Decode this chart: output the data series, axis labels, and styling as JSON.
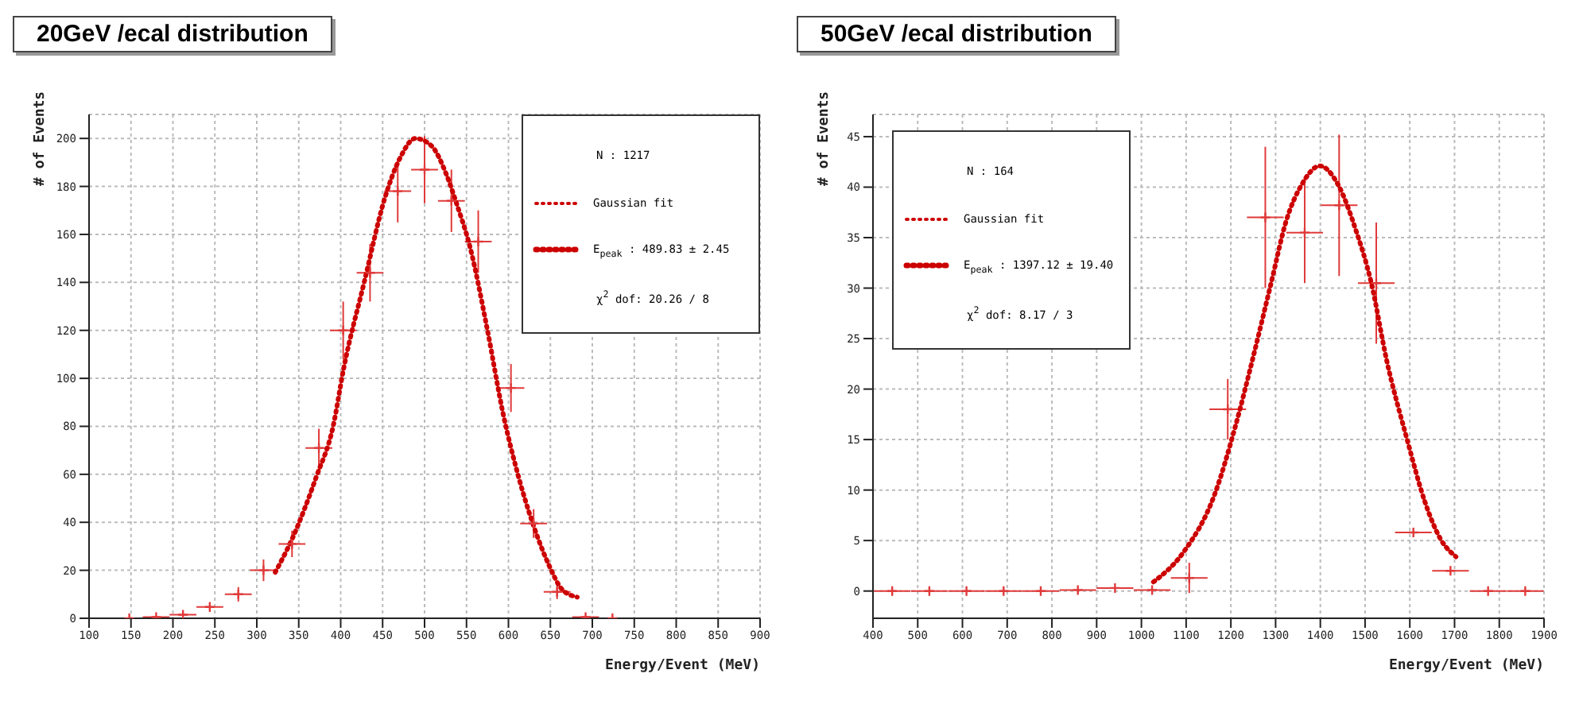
{
  "chart_data": [
    {
      "type": "scatter",
      "title": "20GeV /ecal distribution",
      "xlabel": "Energy/Event (MeV)",
      "ylabel": "# of Events",
      "xlim": [
        100,
        900
      ],
      "xticks": [
        100,
        150,
        200,
        250,
        300,
        350,
        400,
        450,
        500,
        550,
        600,
        650,
        700,
        750,
        800,
        850,
        900
      ],
      "ylim": [
        0,
        210
      ],
      "yticks": [
        0,
        20,
        40,
        60,
        80,
        100,
        120,
        140,
        160,
        180,
        200
      ],
      "grid": true,
      "legend": "top right",
      "annotations": [
        "N   :   1217",
        "E$_{peak}$ : 489.83 ± 2.45",
        "χ$^{2}$ dof: 20.26 /  8"
      ],
      "series": [
        {
          "type": "scatter",
          "marker": "cross",
          "color": "#e03a3a",
          "x": [
            148,
            180,
            212,
            244,
            278,
            308,
            342,
            374,
            403,
            435,
            468,
            500,
            532,
            564,
            603,
            630,
            658,
            692,
            724
          ],
          "values": [
            0,
            0.5,
            1.5,
            4.7,
            10,
            20,
            31,
            71,
            120,
            144,
            178,
            187,
            174,
            157,
            96,
            39.5,
            11,
            0.5,
            0
          ],
          "errors": [
            null,
            null,
            null,
            2,
            3,
            4.5,
            5.5,
            8,
            12,
            12,
            13,
            14,
            13,
            13,
            10,
            6,
            3,
            null,
            null
          ],
          "xerrors": [
            16,
            16,
            16,
            16,
            16,
            16,
            16,
            16,
            16,
            16,
            16,
            16,
            16,
            16,
            16,
            16,
            16,
            16,
            16
          ]
        },
        {
          "type": "line",
          "name": "Gaussian fit",
          "marker": "none",
          "color": "#cc0000",
          "line_style": "dotted",
          "x": [
            322,
            342,
            371,
            391,
            403.5,
            428,
            452.5,
            471,
            489,
            508,
            526,
            538,
            554,
            575,
            593.5,
            612,
            630,
            649,
            664,
            682
          ],
          "values": [
            19.2,
            33,
            59,
            80,
            104,
            140,
            175,
            192,
            200,
            197,
            185,
            173,
            155,
            120,
            85.5,
            59,
            38.5,
            21.6,
            12,
            8.8
          ]
        }
      ]
    },
    {
      "type": "scatter",
      "title": "50GeV /ecal distribution",
      "xlabel": "Energy/Event (MeV)",
      "ylabel": "# of Events",
      "xlim": [
        400,
        1900
      ],
      "xticks": [
        400,
        500,
        600,
        700,
        800,
        900,
        1000,
        1100,
        1200,
        1300,
        1400,
        1500,
        1600,
        1700,
        1800,
        1900
      ],
      "ylim": [
        -2.7,
        47.2
      ],
      "yticks": [
        0,
        5,
        10,
        15,
        20,
        25,
        30,
        35,
        40,
        45
      ],
      "grid": true,
      "legend": "top left",
      "annotations": [
        "N   :   164",
        "E$_{peak}$ : 1397.12 ± 19.40",
        "χ$^{2}$ dof: 8.17 /  3"
      ],
      "series": [
        {
          "type": "scatter",
          "marker": "cross",
          "color": "#e03a3a",
          "x": [
            443,
            526,
            609,
            692,
            775,
            858,
            941,
            1024,
            1107,
            1193,
            1277,
            1365,
            1442,
            1525,
            1608,
            1691,
            1775,
            1858
          ],
          "values": [
            0,
            0,
            0,
            0,
            0,
            0.1,
            0.3,
            0.1,
            1.3,
            18,
            37,
            35.5,
            38.2,
            30.5,
            5.8,
            2,
            0,
            0
          ],
          "errors": [
            null,
            null,
            null,
            null,
            null,
            null,
            null,
            null,
            1.5,
            3,
            7,
            5,
            7,
            6,
            null,
            null,
            null,
            null
          ],
          "xerrors": [
            41,
            41,
            41,
            41,
            41,
            41,
            41,
            41,
            41,
            41,
            41,
            41,
            41,
            41,
            41,
            41,
            41,
            41
          ]
        },
        {
          "type": "line",
          "name": "Gaussian fit",
          "marker": "none",
          "color": "#cc0000",
          "line_style": "dotted",
          "x": [
            1027,
            1095,
            1164,
            1210,
            1250,
            1290,
            1324,
            1359,
            1399,
            1439,
            1479,
            1514,
            1548,
            1594,
            1634,
            1668,
            1703
          ],
          "values": [
            0.9,
            3.9,
            9.6,
            16.3,
            23.2,
            30.5,
            36.7,
            40.3,
            42.1,
            40.3,
            35.8,
            30.5,
            22.9,
            15,
            8.8,
            5.2,
            3.4
          ]
        }
      ]
    }
  ]
}
